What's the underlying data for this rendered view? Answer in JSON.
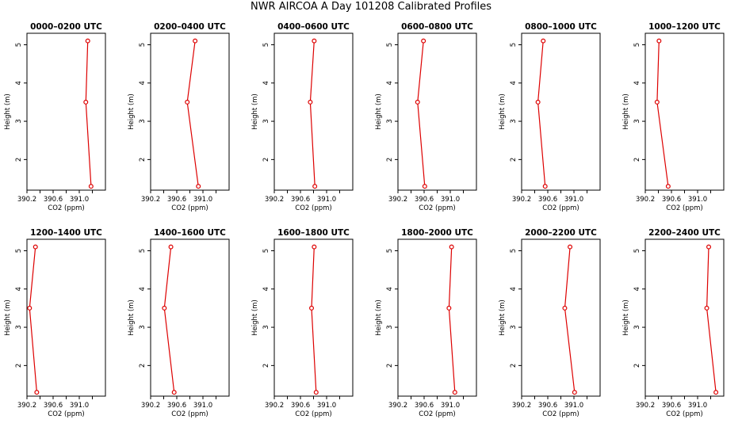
{
  "title": "NWR AIRCOA A  Day 101208  Calibrated Profiles",
  "chart_data": [
    {
      "type": "line",
      "title": "0000–0200 UTC",
      "xlabel": "CO2 (ppm)",
      "ylabel": "Height (m)",
      "xlim": [
        390.2,
        391.4
      ],
      "ylim": [
        1.2,
        5.3
      ],
      "xticks": [
        390.2,
        390.6,
        391.0
      ],
      "yticks": [
        2,
        3,
        4,
        5
      ],
      "x": [
        391.13,
        391.1,
        391.18
      ],
      "y": [
        5.1,
        3.5,
        1.3
      ],
      "color": "#dd0000"
    },
    {
      "type": "line",
      "title": "0200–0400 UTC",
      "xlabel": "CO2 (ppm)",
      "ylabel": "Height (m)",
      "xlim": [
        390.2,
        391.4
      ],
      "ylim": [
        1.2,
        5.3
      ],
      "xticks": [
        390.2,
        390.6,
        391.0
      ],
      "yticks": [
        2,
        3,
        4,
        5
      ],
      "x": [
        390.88,
        390.76,
        390.93
      ],
      "y": [
        5.1,
        3.5,
        1.3
      ],
      "color": "#dd0000"
    },
    {
      "type": "line",
      "title": "0400–0600 UTC",
      "xlabel": "CO2 (ppm)",
      "ylabel": "Height (m)",
      "xlim": [
        390.2,
        391.4
      ],
      "ylim": [
        1.2,
        5.3
      ],
      "xticks": [
        390.2,
        390.6,
        391.0
      ],
      "yticks": [
        2,
        3,
        4,
        5
      ],
      "x": [
        390.81,
        390.75,
        390.82
      ],
      "y": [
        5.1,
        3.5,
        1.3
      ],
      "color": "#dd0000"
    },
    {
      "type": "line",
      "title": "0600–0800 UTC",
      "xlabel": "CO2 (ppm)",
      "ylabel": "Height (m)",
      "xlim": [
        390.2,
        391.4
      ],
      "ylim": [
        1.2,
        5.3
      ],
      "xticks": [
        390.2,
        390.6,
        391.0
      ],
      "yticks": [
        2,
        3,
        4,
        5
      ],
      "x": [
        390.59,
        390.5,
        390.61
      ],
      "y": [
        5.1,
        3.5,
        1.3
      ],
      "color": "#dd0000"
    },
    {
      "type": "line",
      "title": "0800–1000 UTC",
      "xlabel": "CO2 (ppm)",
      "ylabel": "Height (m)",
      "xlim": [
        390.2,
        391.4
      ],
      "ylim": [
        1.2,
        5.3
      ],
      "xticks": [
        390.2,
        390.6,
        391.0
      ],
      "yticks": [
        2,
        3,
        4,
        5
      ],
      "x": [
        390.53,
        390.45,
        390.56
      ],
      "y": [
        5.1,
        3.5,
        1.3
      ],
      "color": "#dd0000"
    },
    {
      "type": "line",
      "title": "1000–1200 UTC",
      "xlabel": "CO2 (ppm)",
      "ylabel": "Height (m)",
      "xlim": [
        390.2,
        391.4
      ],
      "ylim": [
        1.2,
        5.3
      ],
      "xticks": [
        390.2,
        390.6,
        391.0
      ],
      "yticks": [
        2,
        3,
        4,
        5
      ],
      "x": [
        390.41,
        390.38,
        390.55
      ],
      "y": [
        5.1,
        3.5,
        1.3
      ],
      "color": "#dd0000"
    },
    {
      "type": "line",
      "title": "1200–1400 UTC",
      "xlabel": "CO2 (ppm)",
      "ylabel": "Height (m)",
      "xlim": [
        390.2,
        391.4
      ],
      "ylim": [
        1.2,
        5.3
      ],
      "xticks": [
        390.2,
        390.6,
        391.0
      ],
      "yticks": [
        2,
        3,
        4,
        5
      ],
      "x": [
        390.33,
        390.24,
        390.35
      ],
      "y": [
        5.1,
        3.5,
        1.3
      ],
      "color": "#dd0000"
    },
    {
      "type": "line",
      "title": "1400–1600 UTC",
      "xlabel": "CO2 (ppm)",
      "ylabel": "Height (m)",
      "xlim": [
        390.2,
        391.4
      ],
      "ylim": [
        1.2,
        5.3
      ],
      "xticks": [
        390.2,
        390.6,
        391.0
      ],
      "yticks": [
        2,
        3,
        4,
        5
      ],
      "x": [
        390.51,
        390.41,
        390.56
      ],
      "y": [
        5.1,
        3.5,
        1.3
      ],
      "color": "#dd0000"
    },
    {
      "type": "line",
      "title": "1600–1800 UTC",
      "xlabel": "CO2 (ppm)",
      "ylabel": "Height (m)",
      "xlim": [
        390.2,
        391.4
      ],
      "ylim": [
        1.2,
        5.3
      ],
      "xticks": [
        390.2,
        390.6,
        391.0
      ],
      "yticks": [
        2,
        3,
        4,
        5
      ],
      "x": [
        390.81,
        390.77,
        390.84
      ],
      "y": [
        5.1,
        3.5,
        1.3
      ],
      "color": "#dd0000"
    },
    {
      "type": "line",
      "title": "1800–2000 UTC",
      "xlabel": "CO2 (ppm)",
      "ylabel": "Height (m)",
      "xlim": [
        390.2,
        391.4
      ],
      "ylim": [
        1.2,
        5.3
      ],
      "xticks": [
        390.2,
        390.6,
        391.0
      ],
      "yticks": [
        2,
        3,
        4,
        5
      ],
      "x": [
        391.02,
        390.98,
        391.07
      ],
      "y": [
        5.1,
        3.5,
        1.3
      ],
      "color": "#dd0000"
    },
    {
      "type": "line",
      "title": "2000–2200 UTC",
      "xlabel": "CO2 (ppm)",
      "ylabel": "Height (m)",
      "xlim": [
        390.2,
        391.4
      ],
      "ylim": [
        1.2,
        5.3
      ],
      "xticks": [
        390.2,
        390.6,
        391.0
      ],
      "yticks": [
        2,
        3,
        4,
        5
      ],
      "x": [
        390.94,
        390.86,
        391.01
      ],
      "y": [
        5.1,
        3.5,
        1.3
      ],
      "color": "#dd0000"
    },
    {
      "type": "line",
      "title": "2200–2400 UTC",
      "xlabel": "CO2 (ppm)",
      "ylabel": "Height (m)",
      "xlim": [
        390.2,
        391.4
      ],
      "ylim": [
        1.2,
        5.3
      ],
      "xticks": [
        390.2,
        390.6,
        391.0
      ],
      "yticks": [
        2,
        3,
        4,
        5
      ],
      "x": [
        391.17,
        391.14,
        391.28
      ],
      "y": [
        5.1,
        3.5,
        1.3
      ],
      "color": "#dd0000"
    }
  ]
}
